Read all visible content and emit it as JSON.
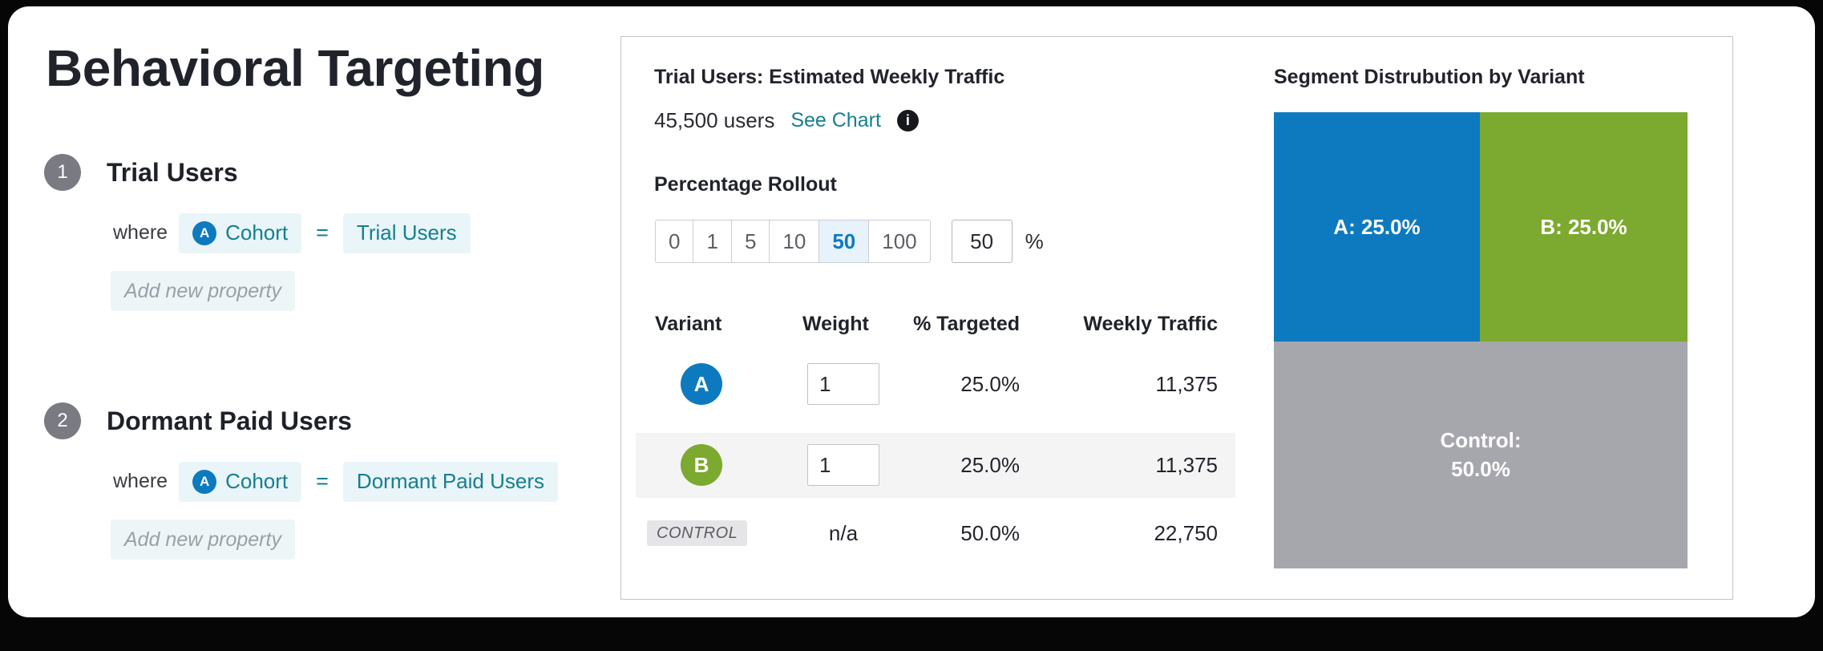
{
  "title": "Behavioral Targeting",
  "segments": [
    {
      "number": "1",
      "name": "Trial Users",
      "where_label": "where",
      "property": "Cohort",
      "operator": "=",
      "value": "Trial Users",
      "add_placeholder": "Add new property"
    },
    {
      "number": "2",
      "name": "Dormant Paid Users",
      "where_label": "where",
      "property": "Cohort",
      "operator": "=",
      "value": "Dormant Paid Users",
      "add_placeholder": "Add new property"
    }
  ],
  "panel": {
    "traffic_title": "Trial Users: Estimated Weekly Traffic",
    "traffic_value": "45,500 users",
    "see_chart": "See Chart",
    "info_icon": "info-icon",
    "rollout_label": "Percentage Rollout",
    "rollout_options": [
      "0",
      "1",
      "5",
      "10",
      "50",
      "100"
    ],
    "rollout_selected": "50",
    "rollout_input": "50",
    "rollout_unit": "%",
    "table": {
      "headers": [
        "Variant",
        "Weight",
        "% Targeted",
        "Weekly Traffic"
      ],
      "rows": [
        {
          "variant": "A",
          "weight": "1",
          "targeted": "25.0%",
          "traffic": "11,375"
        },
        {
          "variant": "B",
          "weight": "1",
          "targeted": "25.0%",
          "traffic": "11,375"
        },
        {
          "variant": "CONTROL",
          "weight": "n/a",
          "targeted": "50.0%",
          "traffic": "22,750"
        }
      ]
    }
  },
  "distribution": {
    "title": "Segment Distrubution by Variant",
    "chart_data": {
      "type": "treemap",
      "segments": [
        {
          "variant": "A",
          "label": "A: 25.0%",
          "percent": 25.0,
          "color": "#0d7ac0"
        },
        {
          "variant": "B",
          "label": "B: 25.0%",
          "percent": 25.0,
          "color": "#7ca92f"
        },
        {
          "variant": "Control",
          "label": "Control: 50.0%",
          "percent": 50.0,
          "color": "#a6a6ad"
        }
      ]
    }
  },
  "colors": {
    "accent_blue": "#0d7ac0",
    "accent_green": "#7ca92f",
    "control_gray": "#a6a6ad",
    "teal_link": "#157f8e",
    "pill_bg": "#e9f5f8",
    "row_highlight": "#f4f4f5"
  }
}
